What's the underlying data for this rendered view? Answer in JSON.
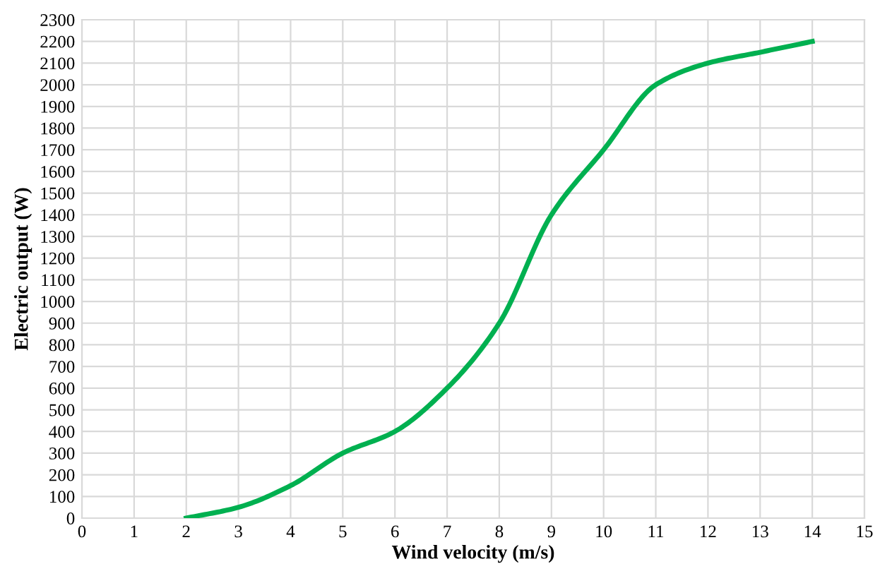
{
  "chart_data": {
    "type": "line",
    "xlabel": "Wind velocity (m/s)",
    "ylabel": "Electric output (W)",
    "x": [
      2,
      3,
      4,
      5,
      6,
      7,
      8,
      9,
      10,
      11,
      12,
      13,
      14
    ],
    "series": [
      {
        "color": "#00b050",
        "values": [
          0,
          50,
          150,
          300,
          400,
          600,
          900,
          1400,
          1700,
          2000,
          2100,
          2150,
          2200
        ]
      }
    ],
    "xlim": [
      0,
      15
    ],
    "xticks": [
      0,
      1,
      2,
      3,
      4,
      5,
      6,
      7,
      8,
      9,
      10,
      11,
      12,
      13,
      14,
      15
    ],
    "ylim": [
      0,
      2300
    ],
    "yticks": [
      0,
      100,
      200,
      300,
      400,
      500,
      600,
      700,
      800,
      900,
      1000,
      1100,
      1200,
      1300,
      1400,
      1500,
      1600,
      1700,
      1800,
      1900,
      2000,
      2100,
      2200,
      2300
    ],
    "grid": true,
    "marker": "none",
    "line_style": "solid",
    "legend": false
  }
}
